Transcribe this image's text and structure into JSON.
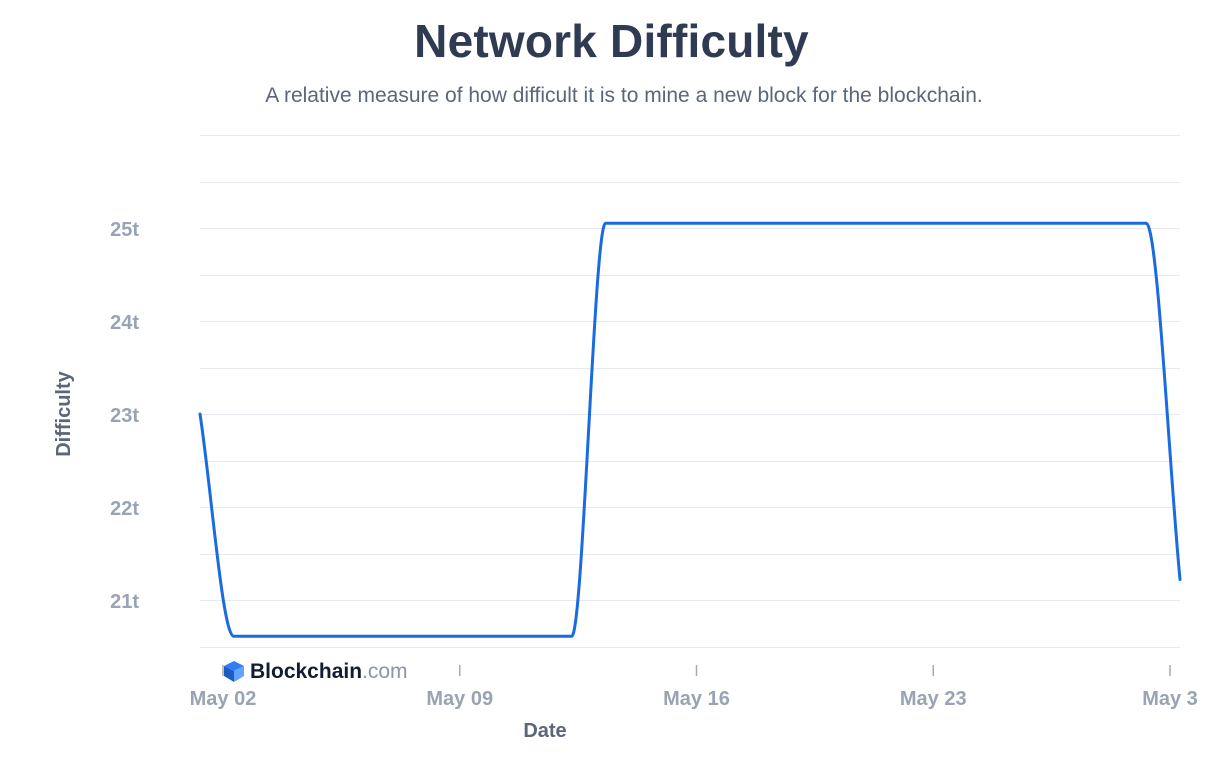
{
  "header": {
    "title": "Network Difficulty",
    "subtitle": "A relative measure of how difficult it is to mine a new block for the blockchain."
  },
  "branding": {
    "name": "Blockchain",
    "suffix": ".com"
  },
  "colors": {
    "line": "#1a6be0",
    "grid": "#e6e9ee",
    "text_primary": "#2f3b52",
    "text_muted": "#9aa3b3"
  },
  "chart_data": {
    "type": "line",
    "title": "Network Difficulty",
    "subtitle": "A relative measure of how difficult it is to mine a new block for the blockchain.",
    "xlabel": "Date",
    "ylabel": "Difficulty",
    "x_tick_labels": [
      "May 02",
      "May 09",
      "May 16",
      "May 23",
      "May 3"
    ],
    "y_tick_labels": [
      "21t",
      "22t",
      "23t",
      "24t",
      "25t"
    ],
    "y_ticks": [
      21,
      22,
      23,
      24,
      25
    ],
    "ylim": [
      20.5,
      26
    ],
    "xlim": [
      "2021-05-02",
      "2021-05-31"
    ],
    "grid": true,
    "legend": "none",
    "series": [
      {
        "x": [
          "2021-05-02",
          "2021-05-03",
          "2021-05-13",
          "2021-05-14",
          "2021-05-30",
          "2021-05-31"
        ],
        "y": [
          23.0,
          20.61,
          20.61,
          25.05,
          25.05,
          21.22
        ]
      }
    ]
  }
}
